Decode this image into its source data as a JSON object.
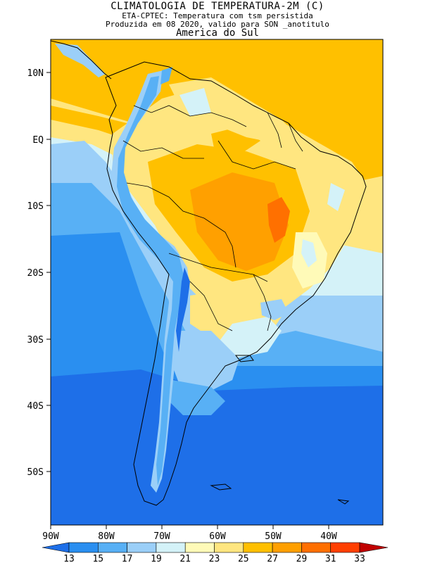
{
  "header": {
    "title": "CLIMATOLOGIA DE TEMPERATURA-2M (C)",
    "subtitle1": "ETA-CPTEC: Temperatura com tsm persistida",
    "subtitle2": "Produzida em 08 2020, valido para SON _anotitulo",
    "region": "America do Sul"
  },
  "axes": {
    "lat_labels": [
      "10N",
      "EQ",
      "10S",
      "20S",
      "30S",
      "40S",
      "50S"
    ],
    "lon_labels": [
      "90W",
      "80W",
      "70W",
      "60W",
      "50W",
      "40W"
    ]
  },
  "colorbar": {
    "ticks": [
      "13",
      "15",
      "17",
      "19",
      "21",
      "23",
      "25",
      "27",
      "29",
      "31",
      "33"
    ],
    "colors": [
      "#1e6fe8",
      "#2a8ff0",
      "#58b0f5",
      "#9bcff8",
      "#d4f2f8",
      "#fffab8",
      "#ffe680",
      "#ffc000",
      "#ffa000",
      "#ff7000",
      "#ff4000",
      "#e01000",
      "#c00000"
    ]
  },
  "chart_data": {
    "type": "heatmap",
    "variable": "2m temperature (C)",
    "lon_range": [
      -92,
      -32
    ],
    "lat_range": [
      -58,
      15
    ],
    "levels": [
      13,
      15,
      17,
      19,
      21,
      23,
      25,
      27,
      29,
      31,
      33
    ]
  }
}
